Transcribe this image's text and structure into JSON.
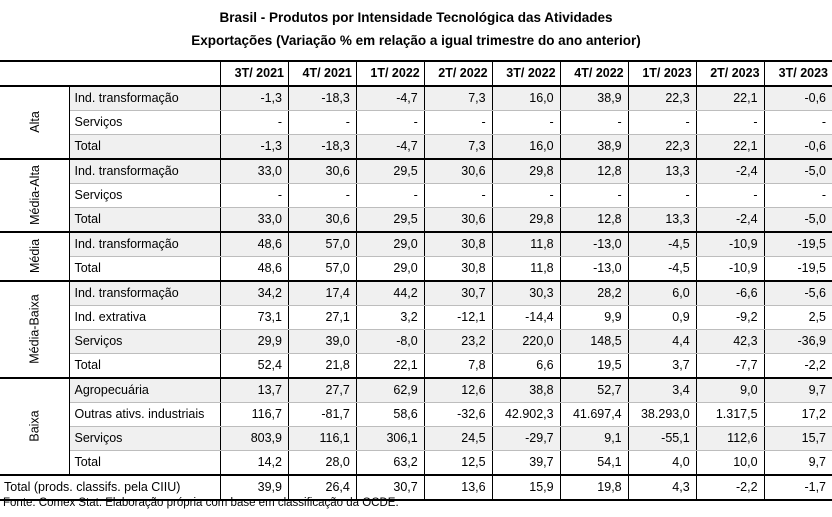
{
  "title": "Brasil - Produtos por Intensidade Tecnológica das Atividades",
  "subtitle": "Exportações (Variação % em relação a igual trimestre do ano anterior)",
  "columns": [
    "3T/ 2021",
    "4T/ 2021",
    "1T/ 2022",
    "2T/ 2022",
    "3T/ 2022",
    "4T/ 2022",
    "1T/ 2023",
    "2T/ 2023",
    "3T/ 2023"
  ],
  "groups": [
    {
      "name": "Alta",
      "rows": [
        {
          "label": "Ind. transformação",
          "values": [
            "-1,3",
            "-18,3",
            "-4,7",
            "7,3",
            "16,0",
            "38,9",
            "22,3",
            "22,1",
            "-0,6"
          ]
        },
        {
          "label": "Serviços",
          "values": [
            "-",
            "-",
            "-",
            "-",
            "-",
            "-",
            "-",
            "-",
            "-"
          ]
        },
        {
          "label": "Total",
          "values": [
            "-1,3",
            "-18,3",
            "-4,7",
            "7,3",
            "16,0",
            "38,9",
            "22,3",
            "22,1",
            "-0,6"
          ]
        }
      ]
    },
    {
      "name": "Média-Alta",
      "rows": [
        {
          "label": "Ind. transformação",
          "values": [
            "33,0",
            "30,6",
            "29,5",
            "30,6",
            "29,8",
            "12,8",
            "13,3",
            "-2,4",
            "-5,0"
          ]
        },
        {
          "label": "Serviços",
          "values": [
            "-",
            "-",
            "-",
            "-",
            "-",
            "-",
            "-",
            "-",
            "-"
          ]
        },
        {
          "label": "Total",
          "values": [
            "33,0",
            "30,6",
            "29,5",
            "30,6",
            "29,8",
            "12,8",
            "13,3",
            "-2,4",
            "-5,0"
          ]
        }
      ]
    },
    {
      "name": "Média",
      "rows": [
        {
          "label": "Ind. transformação",
          "values": [
            "48,6",
            "57,0",
            "29,0",
            "30,8",
            "11,8",
            "-13,0",
            "-4,5",
            "-10,9",
            "-19,5"
          ]
        },
        {
          "label": "Total",
          "values": [
            "48,6",
            "57,0",
            "29,0",
            "30,8",
            "11,8",
            "-13,0",
            "-4,5",
            "-10,9",
            "-19,5"
          ]
        }
      ]
    },
    {
      "name": "Média-Baixa",
      "rows": [
        {
          "label": "Ind. transformação",
          "values": [
            "34,2",
            "17,4",
            "44,2",
            "30,7",
            "30,3",
            "28,2",
            "6,0",
            "-6,6",
            "-5,6"
          ]
        },
        {
          "label": "Ind. extrativa",
          "values": [
            "73,1",
            "27,1",
            "3,2",
            "-12,1",
            "-14,4",
            "9,9",
            "0,9",
            "-9,2",
            "2,5"
          ]
        },
        {
          "label": "Serviços",
          "values": [
            "29,9",
            "39,0",
            "-8,0",
            "23,2",
            "220,0",
            "148,5",
            "4,4",
            "42,3",
            "-36,9"
          ]
        },
        {
          "label": "Total",
          "values": [
            "52,4",
            "21,8",
            "22,1",
            "7,8",
            "6,6",
            "19,5",
            "3,7",
            "-7,7",
            "-2,2"
          ]
        }
      ]
    },
    {
      "name": "Baixa",
      "rows": [
        {
          "label": "Agropecuária",
          "values": [
            "13,7",
            "27,7",
            "62,9",
            "12,6",
            "38,8",
            "52,7",
            "3,4",
            "9,0",
            "9,7"
          ]
        },
        {
          "label": "Outras ativs. industriais",
          "values": [
            "116,7",
            "-81,7",
            "58,6",
            "-32,6",
            "42.902,3",
            "41.697,4",
            "38.293,0",
            "1.317,5",
            "17,2"
          ]
        },
        {
          "label": "Serviços",
          "values": [
            "803,9",
            "116,1",
            "306,1",
            "24,5",
            "-29,7",
            "9,1",
            "-55,1",
            "112,6",
            "15,7"
          ]
        },
        {
          "label": "Total",
          "values": [
            "14,2",
            "28,0",
            "63,2",
            "12,5",
            "39,7",
            "54,1",
            "4,0",
            "10,0",
            "9,7"
          ]
        }
      ]
    }
  ],
  "total_row": {
    "label": "Total (prods. classifs. pela CIIU)",
    "values": [
      "39,9",
      "26,4",
      "30,7",
      "13,6",
      "15,9",
      "19,8",
      "4,3",
      "-2,2",
      "-1,7"
    ]
  },
  "source": "Fonte: Comex Stat. Elaboração própria com base em classificação da OCDE."
}
